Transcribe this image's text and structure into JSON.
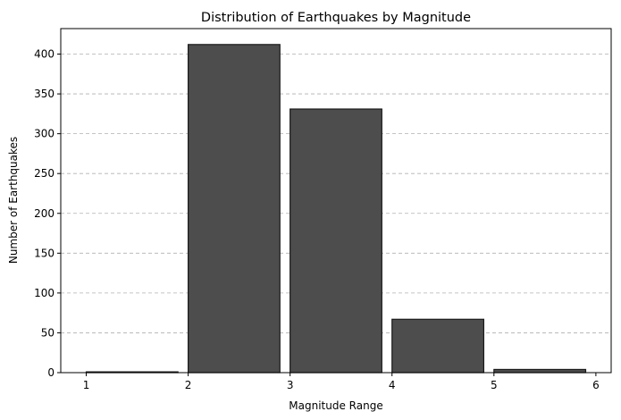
{
  "chart_data": {
    "type": "bar",
    "title": "Distribution of Earthquakes by Magnitude",
    "xlabel": "Magnitude Range",
    "ylabel": "Number of Earthquakes",
    "bins": [
      {
        "start": 1,
        "end": 2,
        "count": 1
      },
      {
        "start": 2,
        "end": 3,
        "count": 412
      },
      {
        "start": 3,
        "end": 4,
        "count": 331
      },
      {
        "start": 4,
        "end": 5,
        "count": 67
      },
      {
        "start": 5,
        "end": 6,
        "count": 4
      }
    ],
    "bar_width_fraction": 0.9,
    "xlim": [
      0.75,
      6.15
    ],
    "ylim": [
      0,
      432
    ],
    "xticks": [
      1,
      2,
      3,
      4,
      5,
      6
    ],
    "yticks": [
      0,
      50,
      100,
      150,
      200,
      250,
      300,
      350,
      400
    ],
    "grid": "y-dashed",
    "bar_color": "#4d4d4d",
    "bar_edge_color": "#1a1a1a",
    "grid_color": "#b0b0b0"
  }
}
